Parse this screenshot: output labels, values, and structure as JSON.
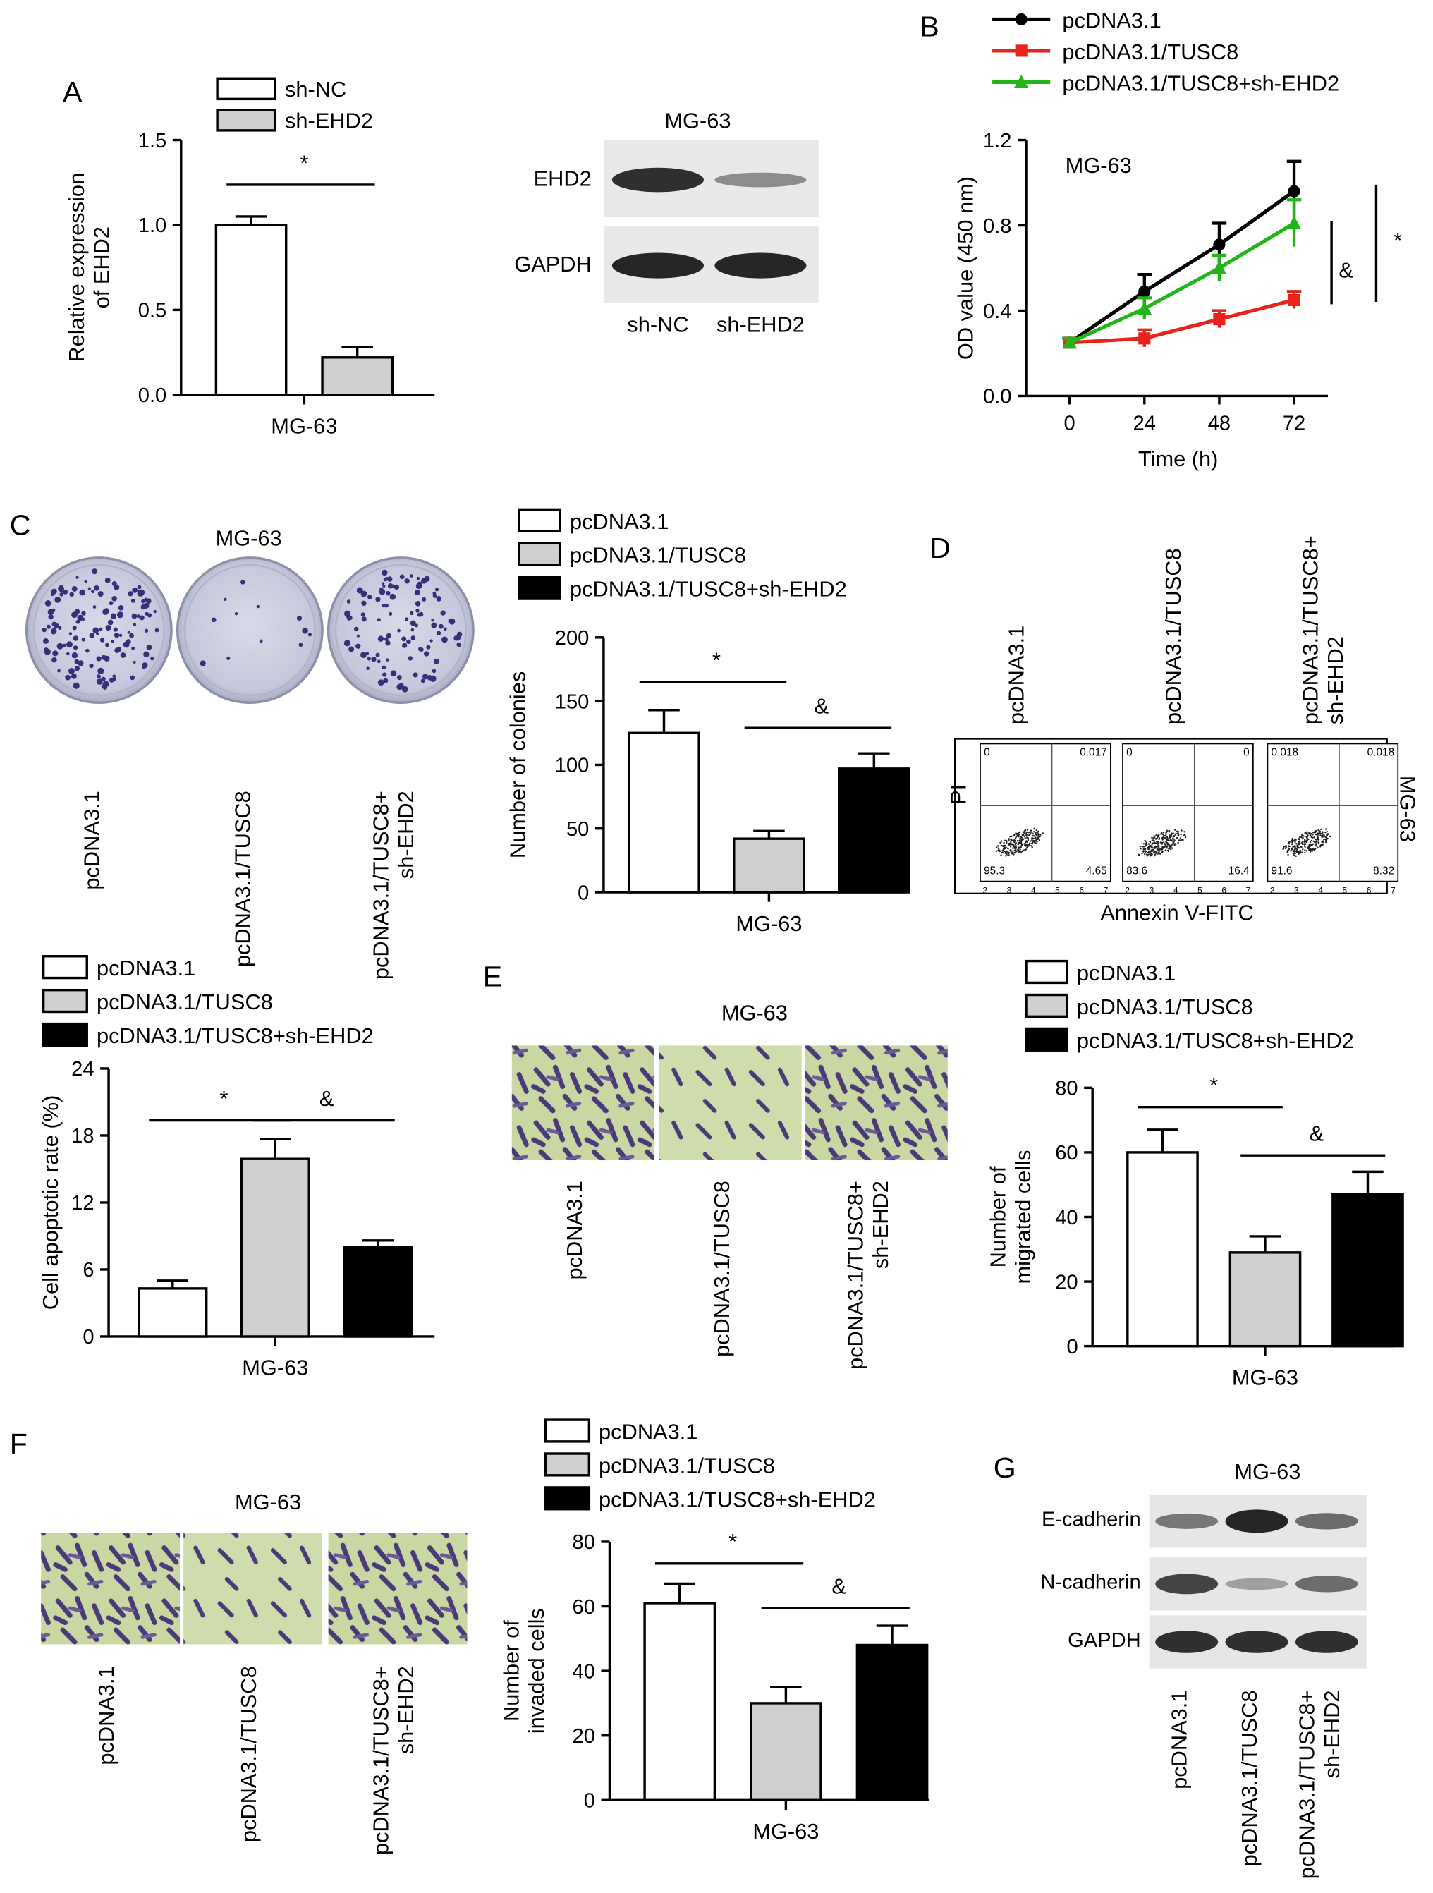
{
  "panel_letters": {
    "A": "A",
    "B": "B",
    "C": "C",
    "D": "D",
    "E": "E",
    "F": "F",
    "G": "G"
  },
  "colors": {
    "white": "#ffffff",
    "gray": "#cfcfcf",
    "black": "#000000",
    "line_black": "#000000",
    "line_red": "#e8231c",
    "line_green": "#22b519"
  },
  "chart_data": [
    {
      "id": "A-bar",
      "type": "bar",
      "ylabel": "Relative expression\nof EHD2",
      "xlabel": "MG-63",
      "ylim": [
        0,
        1.5
      ],
      "yticks": [
        "0.0",
        "0.5",
        "1.0",
        "1.5"
      ],
      "legend": [
        "sh-NC",
        "sh-EHD2"
      ],
      "series": [
        {
          "name": "sh-NC",
          "value": 1.0,
          "error": 0.05,
          "color": "white"
        },
        {
          "name": "sh-EHD2",
          "value": 0.22,
          "error": 0.06,
          "color": "gray"
        }
      ],
      "annotations": [
        {
          "text": "*",
          "between": [
            0,
            1
          ]
        }
      ]
    },
    {
      "id": "B-line",
      "type": "line",
      "title": "MG-63",
      "xlabel": "Time (h)",
      "ylabel": "OD value (450 nm)",
      "x": [
        0,
        24,
        48,
        72
      ],
      "xticks": [
        "0",
        "24",
        "48",
        "72"
      ],
      "ylim": [
        0,
        1.2
      ],
      "yticks": [
        "0.0",
        "0.4",
        "0.8",
        "1.2"
      ],
      "series": [
        {
          "name": "pcDNA3.1",
          "values": [
            0.25,
            0.49,
            0.71,
            0.96
          ],
          "errors": [
            0.02,
            0.08,
            0.1,
            0.14
          ],
          "color": "line_black",
          "marker": "circle"
        },
        {
          "name": "pcDNA3.1/TUSC8",
          "values": [
            0.25,
            0.27,
            0.36,
            0.45
          ],
          "errors": [
            0.02,
            0.04,
            0.04,
            0.04
          ],
          "color": "line_red",
          "marker": "square"
        },
        {
          "name": "pcDNA3.1/TUSC8+sh-EHD2",
          "values": [
            0.25,
            0.41,
            0.6,
            0.81
          ],
          "errors": [
            0.02,
            0.05,
            0.06,
            0.11
          ],
          "color": "line_green",
          "marker": "triangle"
        }
      ],
      "annotations": [
        {
          "text": "&"
        },
        {
          "text": "*"
        }
      ]
    },
    {
      "id": "C-bar",
      "type": "bar",
      "ylabel": "Number of colonies",
      "xlabel": "MG-63",
      "ylim": [
        0,
        200
      ],
      "yticks": [
        "0",
        "50",
        "100",
        "150",
        "200"
      ],
      "legend": [
        "pcDNA3.1",
        "pcDNA3.1/TUSC8",
        "pcDNA3.1/TUSC8+sh-EHD2"
      ],
      "series": [
        {
          "name": "pcDNA3.1",
          "value": 125,
          "error": 18,
          "color": "white"
        },
        {
          "name": "pcDNA3.1/TUSC8",
          "value": 42,
          "error": 6,
          "color": "gray"
        },
        {
          "name": "pcDNA3.1/TUSC8+sh-EHD2",
          "value": 97,
          "error": 12,
          "color": "black"
        }
      ],
      "annotations": [
        {
          "text": "*",
          "between": [
            0,
            1
          ]
        },
        {
          "text": "&",
          "between": [
            1,
            2
          ]
        }
      ]
    },
    {
      "id": "D-bar",
      "type": "bar",
      "ylabel": "Cell apoptotic rate (%)",
      "xlabel": "MG-63",
      "ylim": [
        0,
        24
      ],
      "yticks": [
        "0",
        "6",
        "12",
        "18",
        "24"
      ],
      "legend": [
        "pcDNA3.1",
        "pcDNA3.1/TUSC8",
        "pcDNA3.1/TUSC8+sh-EHD2"
      ],
      "series": [
        {
          "name": "pcDNA3.1",
          "value": 4.3,
          "error": 0.7,
          "color": "white"
        },
        {
          "name": "pcDNA3.1/TUSC8",
          "value": 15.9,
          "error": 1.8,
          "color": "gray"
        },
        {
          "name": "pcDNA3.1/TUSC8+sh-EHD2",
          "value": 8.0,
          "error": 0.6,
          "color": "black"
        }
      ],
      "annotations": [
        {
          "text": "*",
          "between": [
            0,
            1
          ]
        },
        {
          "text": "&",
          "between": [
            1,
            2
          ]
        }
      ]
    },
    {
      "id": "E-bar",
      "type": "bar",
      "ylabel": "Number of\nmigrated cells",
      "xlabel": "MG-63",
      "ylim": [
        0,
        80
      ],
      "yticks": [
        "0",
        "20",
        "40",
        "60",
        "80"
      ],
      "legend": [
        "pcDNA3.1",
        "pcDNA3.1/TUSC8",
        "pcDNA3.1/TUSC8+sh-EHD2"
      ],
      "series": [
        {
          "name": "pcDNA3.1",
          "value": 60,
          "error": 7,
          "color": "white"
        },
        {
          "name": "pcDNA3.1/TUSC8",
          "value": 29,
          "error": 5,
          "color": "gray"
        },
        {
          "name": "pcDNA3.1/TUSC8+sh-EHD2",
          "value": 47,
          "error": 7,
          "color": "black"
        }
      ],
      "annotations": [
        {
          "text": "*",
          "between": [
            0,
            1
          ]
        },
        {
          "text": "&",
          "between": [
            1,
            2
          ]
        }
      ]
    },
    {
      "id": "F-bar",
      "type": "bar",
      "ylabel": "Number of\ninvaded cells",
      "xlabel": "MG-63",
      "ylim": [
        0,
        80
      ],
      "yticks": [
        "0",
        "20",
        "40",
        "60",
        "80"
      ],
      "legend": [
        "pcDNA3.1",
        "pcDNA3.1/TUSC8",
        "pcDNA3.1/TUSC8+sh-EHD2"
      ],
      "series": [
        {
          "name": "pcDNA3.1",
          "value": 61,
          "error": 6,
          "color": "white"
        },
        {
          "name": "pcDNA3.1/TUSC8",
          "value": 30,
          "error": 5,
          "color": "gray"
        },
        {
          "name": "pcDNA3.1/TUSC8+sh-EHD2",
          "value": 48,
          "error": 6,
          "color": "black"
        }
      ],
      "annotations": [
        {
          "text": "*",
          "between": [
            0,
            1
          ]
        },
        {
          "text": "&",
          "between": [
            1,
            2
          ]
        }
      ]
    }
  ],
  "blotA": {
    "title": "MG-63",
    "rows": [
      "EHD2",
      "GAPDH"
    ],
    "lanes": [
      "sh-NC",
      "sh-EHD2"
    ],
    "intensity": [
      [
        0.9,
        0.45
      ],
      [
        0.95,
        0.95
      ]
    ]
  },
  "colonies": {
    "title": "MG-63",
    "labels": [
      "pcDNA3.1",
      "pcDNA3.1/TUSC8",
      "pcDNA3.1/TUSC8+\nsh-EHD2"
    ],
    "density": [
      0.9,
      0.08,
      0.75
    ]
  },
  "flow": {
    "group_labels": [
      "pcDNA3.1",
      "pcDNA3.1/TUSC8",
      "pcDNA3.1/TUSC8+\nsh-EHD2"
    ],
    "side_label": "MG-63",
    "xlabel": "Annexin V-FITC",
    "ylabel": "PI",
    "axis_exps": [
      "2",
      "3",
      "4",
      "5",
      "6",
      "7"
    ],
    "plots": [
      {
        "q1": "0",
        "q2": "0.017",
        "q3": "4.65",
        "q4": "95.3"
      },
      {
        "q1": "0",
        "q2": "0",
        "q3": "16.4",
        "q4": "83.6"
      },
      {
        "q1": "0.018",
        "q2": "0.018",
        "q3": "8.32",
        "q4": "91.6"
      }
    ]
  },
  "migrationE": {
    "title": "MG-63",
    "labels": [
      "pcDNA3.1",
      "pcDNA3.1/TUSC8",
      "pcDNA3.1/TUSC8+\nsh-EHD2"
    ]
  },
  "invasionF": {
    "title": "MG-63",
    "labels": [
      "pcDNA3.1",
      "pcDNA3.1/TUSC8",
      "pcDNA3.1/TUSC8+\nsh-EHD2"
    ]
  },
  "blotG": {
    "title": "MG-63",
    "rows": [
      "E-cadherin",
      "N-cadherin",
      "GAPDH"
    ],
    "lanes": [
      "pcDNA3.1",
      "pcDNA3.1/TUSC8",
      "pcDNA3.1/TUSC8+\nsh-EHD2"
    ],
    "intensity": [
      [
        0.55,
        0.95,
        0.6
      ],
      [
        0.8,
        0.35,
        0.6
      ],
      [
        0.9,
        0.9,
        0.9
      ]
    ]
  }
}
